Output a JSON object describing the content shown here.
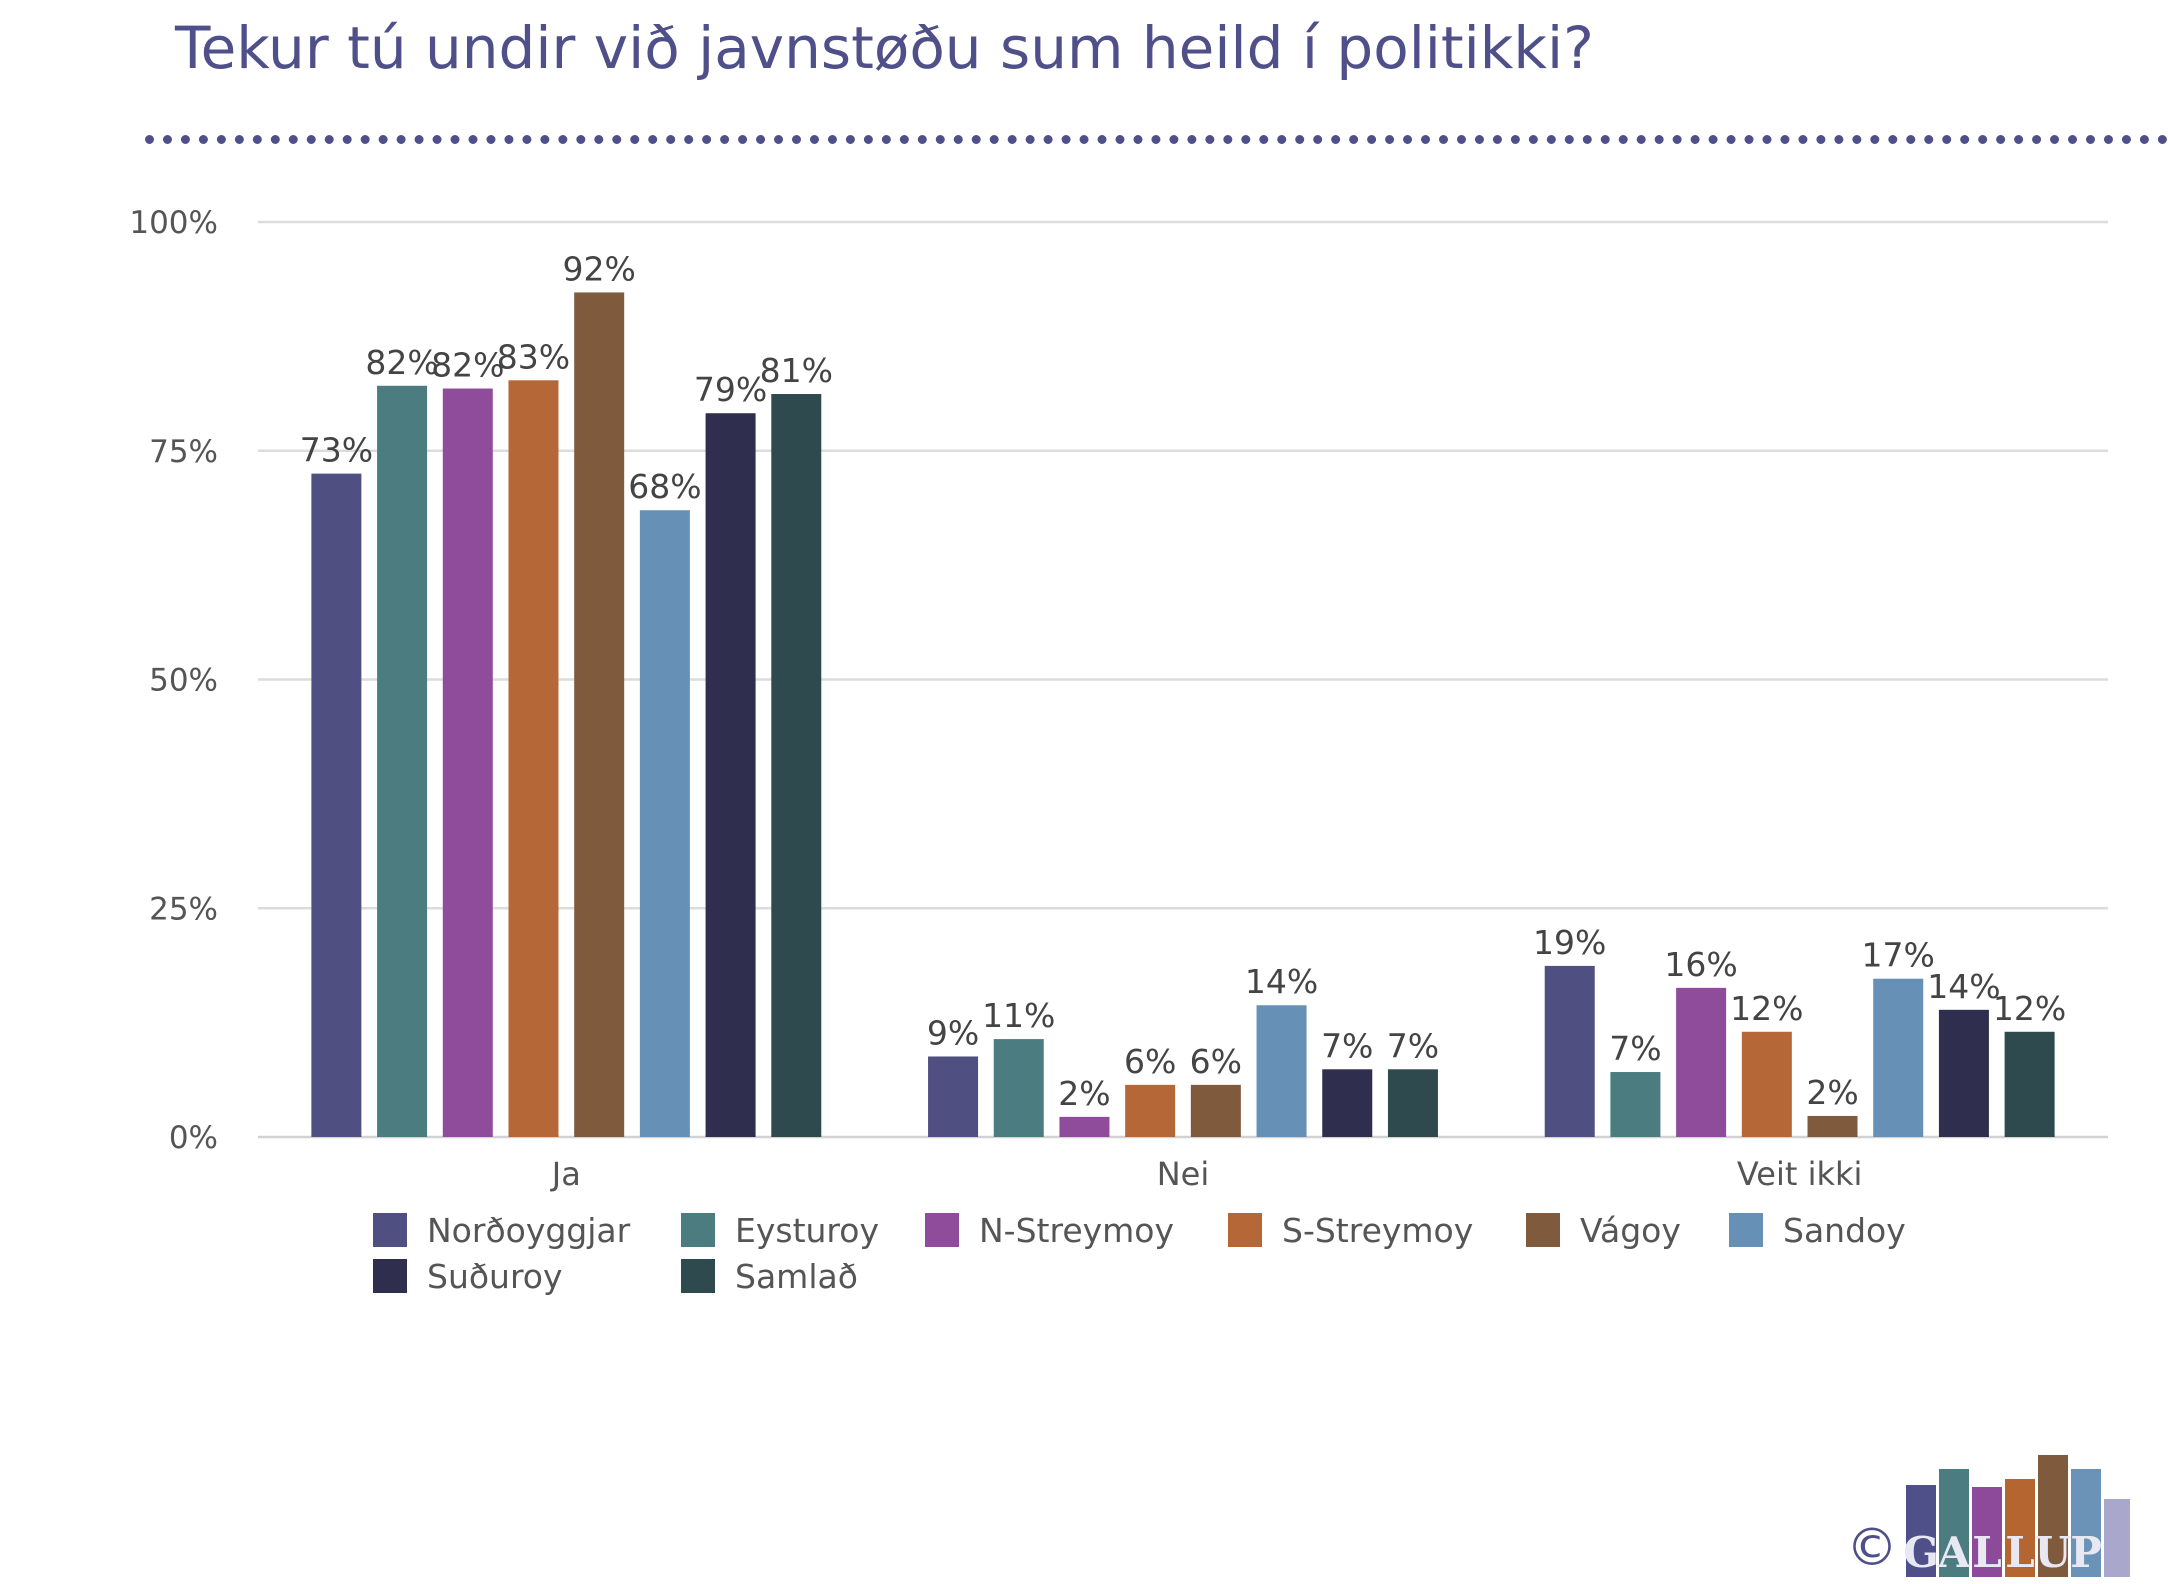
{
  "title": "Tekur tú undir við javnstøðu sum heild í politikki?",
  "logo": {
    "copyright_symbol": "©",
    "letters": [
      "G",
      "A",
      "L",
      "L",
      "U",
      "P"
    ],
    "letter_colors": [
      "#4f4f8a",
      "#4a7c80",
      "#8e4a9a",
      "#b5652f",
      "#7f5a3c",
      "#6b93b8"
    ]
  },
  "chart_data": {
    "type": "bar",
    "categories": [
      "Ja",
      "Nei",
      "Veit ikki"
    ],
    "ylim": [
      0,
      100
    ],
    "y_ticks": [
      0,
      25,
      50,
      75,
      100
    ],
    "y_tick_labels": [
      "0%",
      "25%",
      "50%",
      "75%",
      "100%"
    ],
    "grid": true,
    "legend_position": "bottom",
    "series": [
      {
        "name": "Norðoyggjar",
        "color": "#4f4f82",
        "values": [
          72.5,
          8.8,
          18.7
        ],
        "labels": [
          "73%",
          "9%",
          "19%"
        ]
      },
      {
        "name": "Eysturoy",
        "color": "#4a7c80",
        "values": [
          82.1,
          10.7,
          7.1
        ],
        "labels": [
          "82%",
          "11%",
          "7%"
        ]
      },
      {
        "name": "N-Streymoy",
        "color": "#8f4c9b",
        "values": [
          81.8,
          2.2,
          16.3
        ],
        "labels": [
          "82%",
          "2%",
          "16%"
        ]
      },
      {
        "name": "S-Streymoy",
        "color": "#b66737",
        "values": [
          82.7,
          5.7,
          11.5
        ],
        "labels": [
          "83%",
          "6%",
          "12%"
        ]
      },
      {
        "name": "Vágoy",
        "color": "#7f5a3c",
        "values": [
          92.3,
          5.7,
          2.3
        ],
        "labels": [
          "92%",
          "6%",
          "2%"
        ]
      },
      {
        "name": "Sandoy",
        "color": "#6790b7",
        "values": [
          68.5,
          14.4,
          17.3
        ],
        "labels": [
          "68%",
          "14%",
          "17%"
        ]
      },
      {
        "name": "Suðuroy",
        "color": "#2f2e4e",
        "values": [
          79.1,
          7.4,
          13.9
        ],
        "labels": [
          "79%",
          "7%",
          "14%"
        ]
      },
      {
        "name": "Samlað",
        "color": "#2f4a4e",
        "values": [
          81.2,
          7.4,
          11.5
        ],
        "labels": [
          "81%",
          "7%",
          "12%"
        ]
      }
    ]
  }
}
